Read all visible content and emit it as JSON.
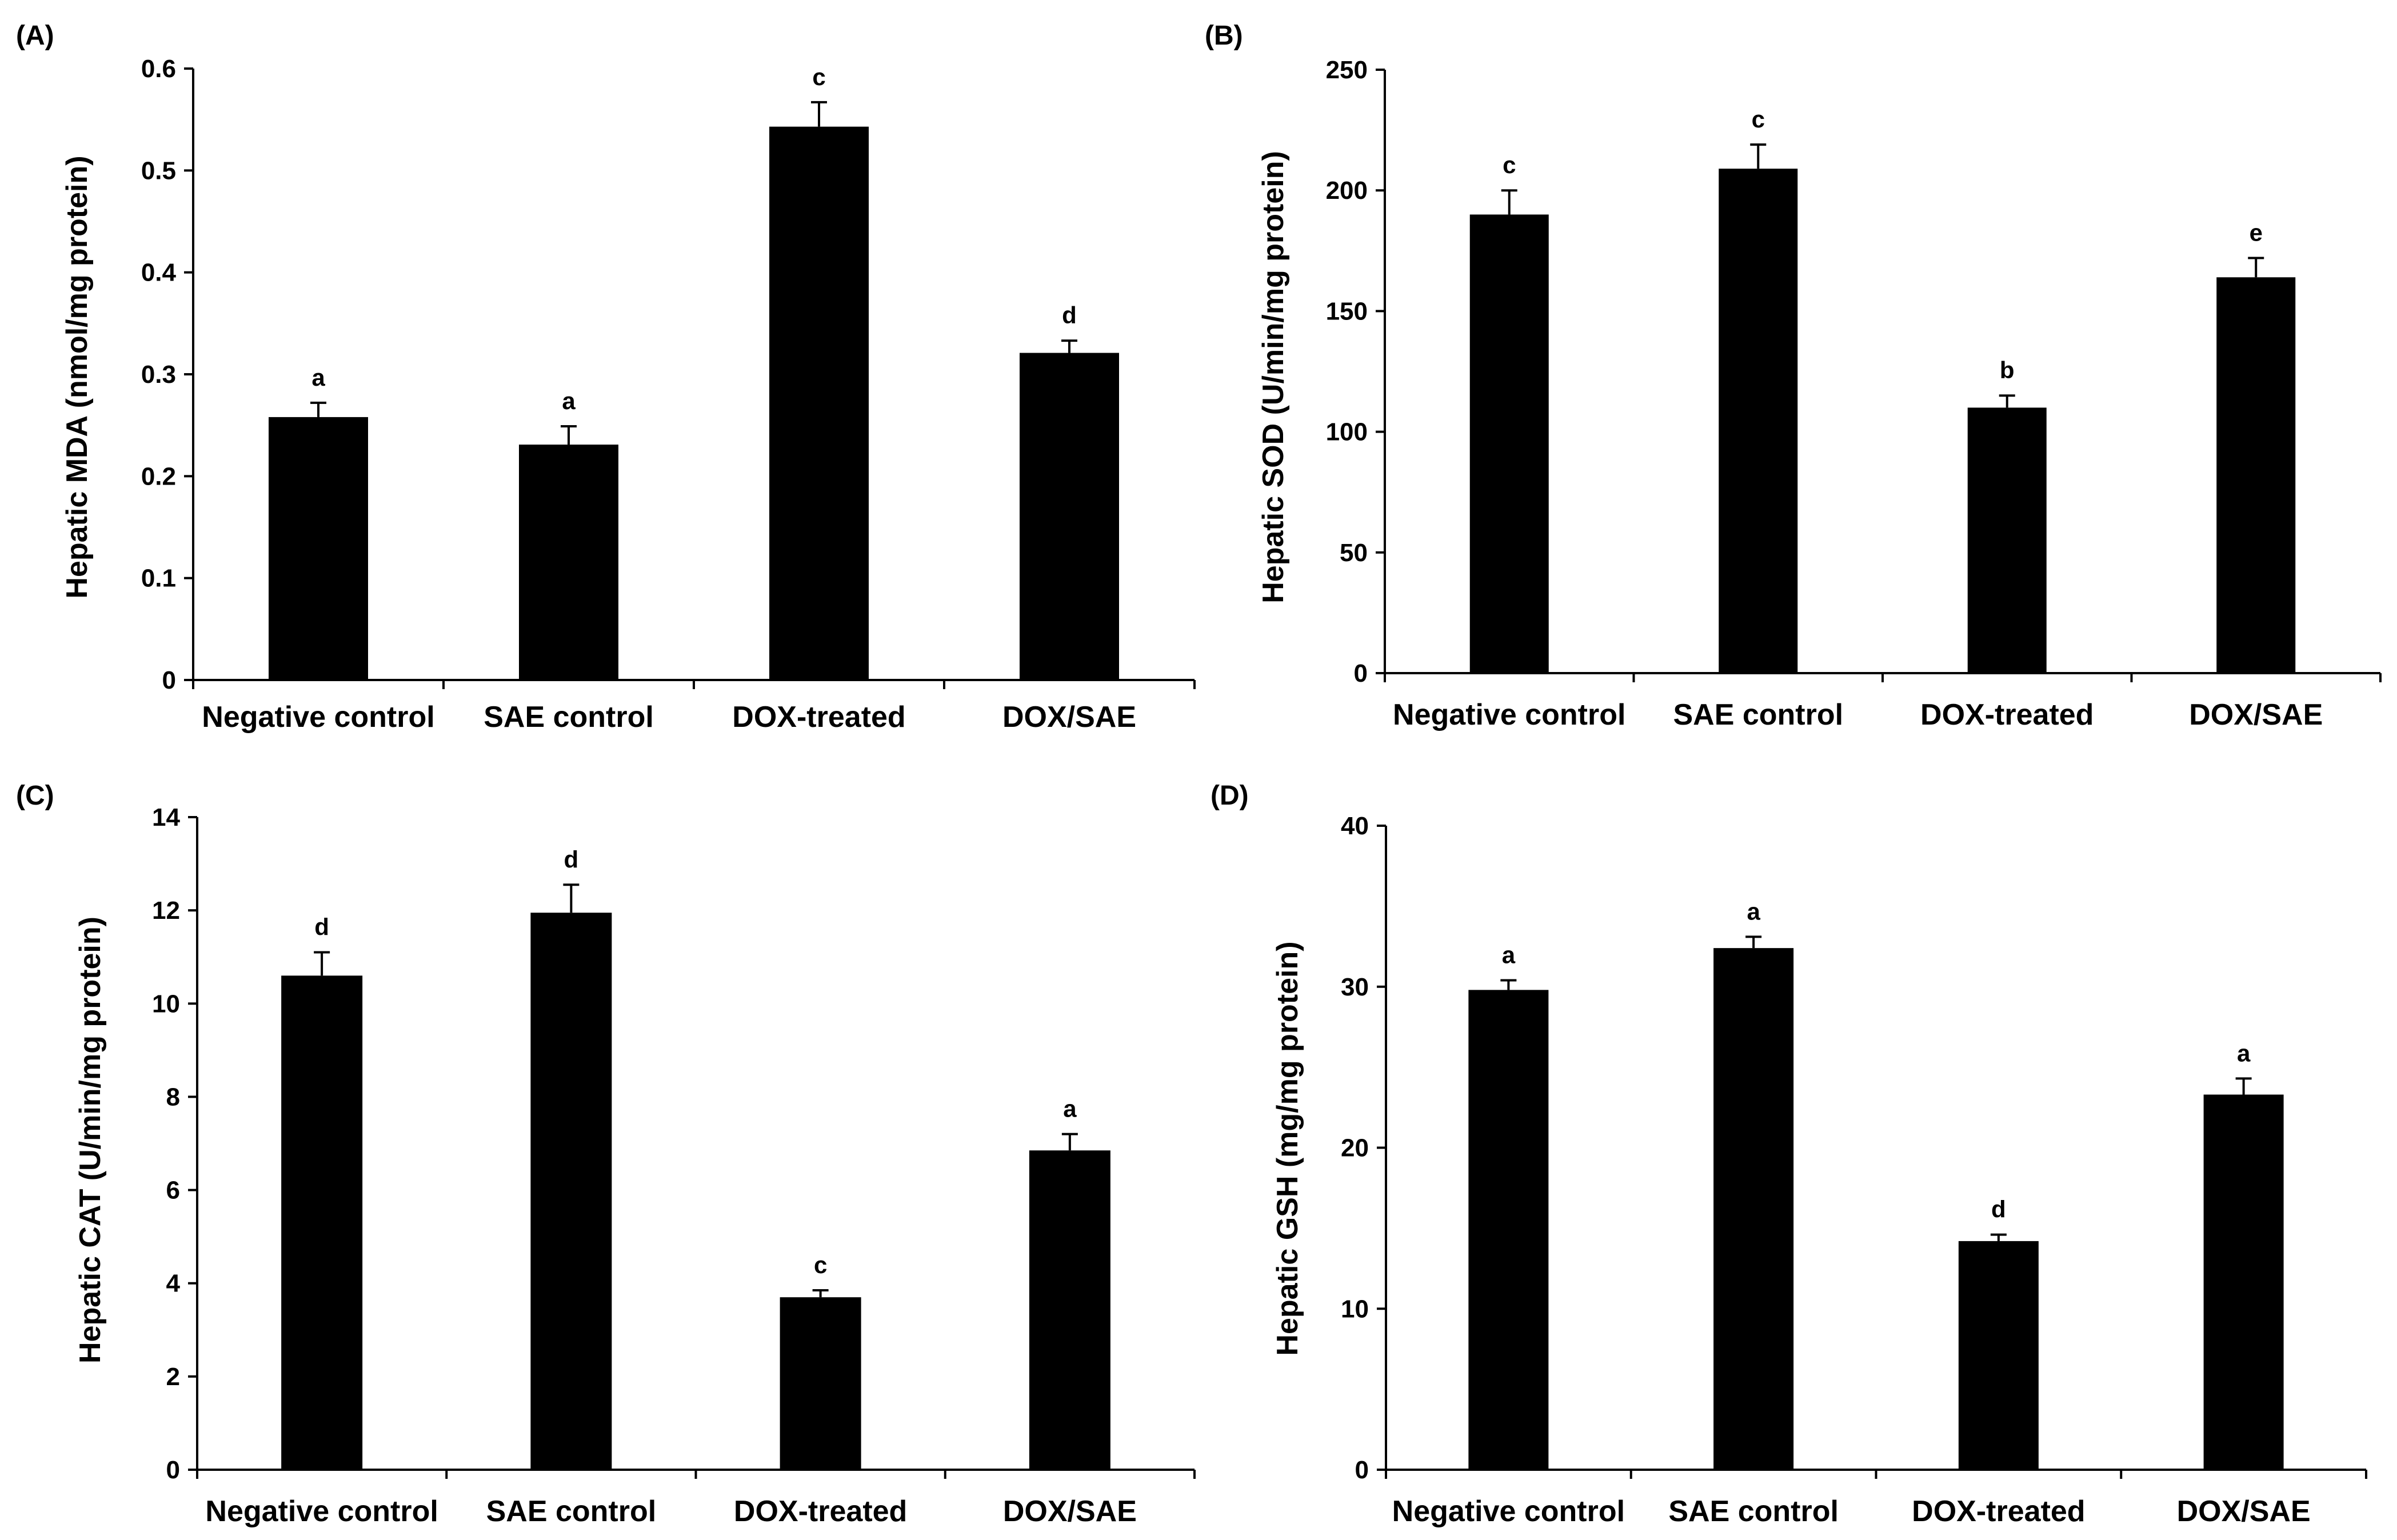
{
  "figure": {
    "background": "#ffffff",
    "bar_color": "#000000",
    "axis_color": "#000000"
  },
  "chart_data": [
    {
      "type": "bar",
      "panel_label": "(A)",
      "title": "",
      "xlabel": "",
      "ylabel": "Hepatic MDA (nmol/mg protein)",
      "categories": [
        "Negative control",
        "SAE control",
        "DOX-treated",
        "DOX/SAE"
      ],
      "values": [
        0.258,
        0.231,
        0.543,
        0.321
      ],
      "errors": [
        0.014,
        0.018,
        0.024,
        0.012
      ],
      "significance": [
        "a",
        "a",
        "c",
        "d"
      ],
      "ylim": [
        0,
        0.6
      ],
      "yticks": [
        0,
        0.1,
        0.2,
        0.3,
        0.4,
        0.5,
        0.6
      ],
      "ytick_labels": [
        "0",
        "0.1",
        "0.2",
        "0.3",
        "0.4",
        "0.5",
        "0.6"
      ],
      "grid": false
    },
    {
      "type": "bar",
      "panel_label": "(B)",
      "title": "",
      "xlabel": "",
      "ylabel": "Hepatic SOD (U/min/mg protein)",
      "categories": [
        "Negative control",
        "SAE control",
        "DOX-treated",
        "DOX/SAE"
      ],
      "values": [
        190,
        209,
        110,
        164
      ],
      "errors": [
        10,
        10,
        5,
        8
      ],
      "significance": [
        "c",
        "c",
        "b",
        "e"
      ],
      "ylim": [
        0,
        250
      ],
      "yticks": [
        0,
        50,
        100,
        150,
        200,
        250
      ],
      "ytick_labels": [
        "0",
        "50",
        "100",
        "150",
        "200",
        "250"
      ],
      "grid": false
    },
    {
      "type": "bar",
      "panel_label": "(C)",
      "title": "",
      "xlabel": "",
      "ylabel": "Hepatic CAT (U/min/mg protein)",
      "categories": [
        "Negative control",
        "SAE control",
        "DOX-treated",
        "DOX/SAE"
      ],
      "values": [
        10.6,
        11.95,
        3.7,
        6.85
      ],
      "errors": [
        0.5,
        0.6,
        0.15,
        0.35
      ],
      "significance": [
        "d",
        "d",
        "c",
        "a"
      ],
      "ylim": [
        0,
        14
      ],
      "yticks": [
        0,
        2,
        4,
        6,
        8,
        10,
        12,
        14
      ],
      "ytick_labels": [
        "0",
        "2",
        "4",
        "6",
        "8",
        "10",
        "12",
        "14"
      ],
      "grid": false
    },
    {
      "type": "bar",
      "panel_label": "(D)",
      "title": "",
      "xlabel": "",
      "ylabel": "Hepatic GSH (mg/mg protein)",
      "categories": [
        "Negative control",
        "SAE control",
        "DOX-treated",
        "DOX/SAE"
      ],
      "values": [
        29.8,
        32.4,
        14.2,
        23.3
      ],
      "errors": [
        0.6,
        0.7,
        0.4,
        1.0
      ],
      "significance": [
        "a",
        "a",
        "d",
        "a"
      ],
      "ylim": [
        0,
        40
      ],
      "yticks": [
        0,
        10,
        20,
        30,
        40
      ],
      "ytick_labels": [
        "0",
        "10",
        "20",
        "30",
        "40"
      ],
      "grid": false
    }
  ]
}
